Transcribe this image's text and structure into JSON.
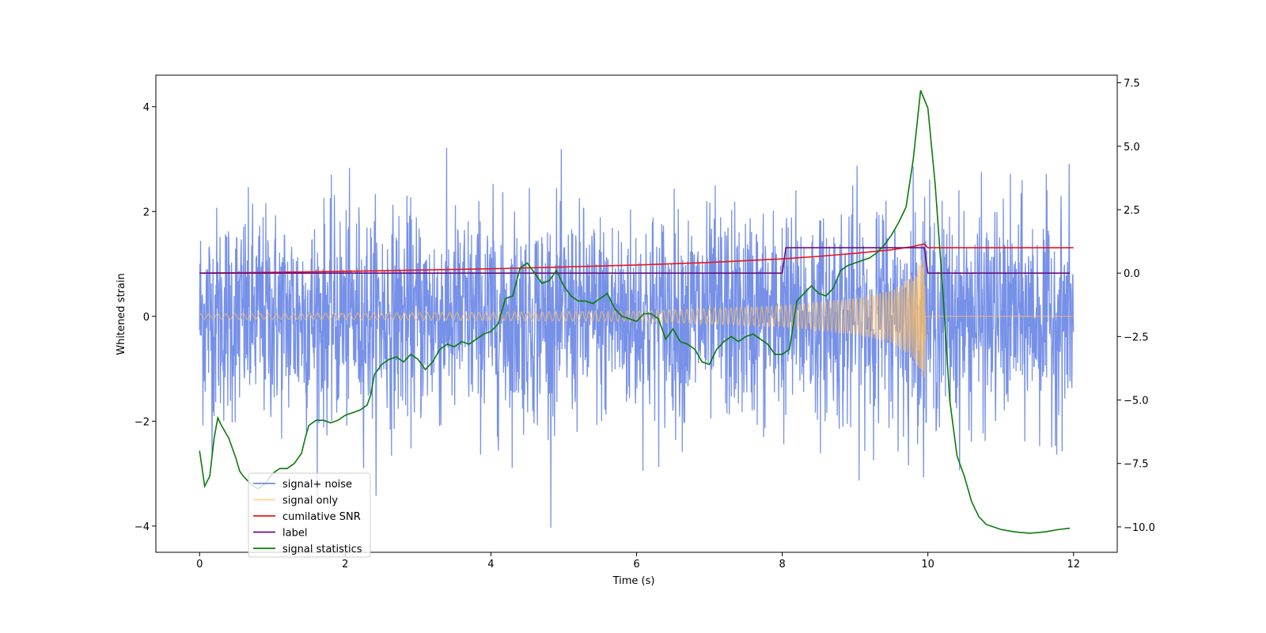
{
  "chart_data": {
    "type": "line",
    "xlabel": "Time (s)",
    "ylabel": "Whitened strain",
    "xlim": [
      -0.6,
      12.6
    ],
    "ylim_left": [
      -4.5,
      4.6
    ],
    "ylim_right": [
      -11.0,
      7.8
    ],
    "x_ticks": [
      0,
      2,
      4,
      6,
      8,
      10,
      12
    ],
    "y_ticks_left": [
      -4,
      -2,
      0,
      2,
      4
    ],
    "y_ticks_right": [
      -10.0,
      -7.5,
      -5.0,
      -2.5,
      0.0,
      2.5,
      5.0,
      7.5
    ],
    "legend_position": "lower-left",
    "grid": false,
    "series": [
      {
        "name": "signal+ noise",
        "axis": "left",
        "color": "#6b88e6",
        "style": "dense noise, about ±1 with peaks near ±4",
        "x_range": [
          0,
          12
        ],
        "typical_amplitude": 1.0,
        "peak_amplitude": 4.1
      },
      {
        "name": "signal only",
        "axis": "left",
        "color": "#ffc060",
        "style": "chirp",
        "x_range": [
          0,
          12
        ],
        "envelope": {
          "x": [
            0,
            2,
            4,
            6,
            8,
            9,
            9.5,
            9.8,
            9.97,
            10.0,
            12
          ],
          "y": [
            0.05,
            0.06,
            0.08,
            0.1,
            0.2,
            0.35,
            0.5,
            0.8,
            1.3,
            0,
            0
          ]
        }
      },
      {
        "name": "cumilative SNR",
        "axis": "right",
        "color": "#e8161c",
        "x": [
          0,
          1,
          2,
          3,
          4,
          5,
          6,
          7,
          8,
          8.5,
          9,
          9.5,
          9.8,
          9.95,
          10,
          12
        ],
        "y": [
          0.0,
          0.03,
          0.07,
          0.12,
          0.17,
          0.24,
          0.32,
          0.42,
          0.56,
          0.66,
          0.78,
          0.92,
          1.05,
          1.15,
          1.0,
          1.0
        ]
      },
      {
        "name": "label",
        "axis": "right",
        "color": "#6a0f80",
        "x": [
          0,
          8.0,
          8.05,
          9.95,
          10.0,
          11.95
        ],
        "y": [
          0.0,
          0.0,
          1.0,
          1.0,
          0.0,
          0.0
        ]
      },
      {
        "name": "signal statistics",
        "axis": "right",
        "color": "#0a7a0a",
        "x": [
          0.0,
          0.07,
          0.14,
          0.2,
          0.25,
          0.3,
          0.4,
          0.5,
          0.55,
          0.6,
          0.7,
          0.8,
          0.9,
          1.0,
          1.1,
          1.2,
          1.3,
          1.4,
          1.45,
          1.5,
          1.6,
          1.7,
          1.8,
          1.9,
          2.0,
          2.1,
          2.2,
          2.3,
          2.35,
          2.4,
          2.5,
          2.6,
          2.7,
          2.8,
          2.9,
          3.0,
          3.1,
          3.2,
          3.3,
          3.4,
          3.5,
          3.6,
          3.7,
          3.8,
          3.9,
          4.0,
          4.1,
          4.2,
          4.3,
          4.4,
          4.5,
          4.6,
          4.7,
          4.8,
          4.9,
          5.0,
          5.1,
          5.2,
          5.3,
          5.4,
          5.5,
          5.6,
          5.7,
          5.8,
          5.9,
          6.0,
          6.1,
          6.2,
          6.3,
          6.4,
          6.5,
          6.6,
          6.7,
          6.8,
          6.9,
          7.0,
          7.1,
          7.2,
          7.3,
          7.4,
          7.5,
          7.6,
          7.7,
          7.8,
          7.9,
          8.0,
          8.1,
          8.2,
          8.3,
          8.4,
          8.5,
          8.6,
          8.7,
          8.8,
          8.9,
          9.0,
          9.1,
          9.2,
          9.3,
          9.4,
          9.5,
          9.6,
          9.7,
          9.8,
          9.9,
          10.0,
          10.1,
          10.2,
          10.3,
          10.4,
          10.5,
          10.6,
          10.7,
          10.8,
          10.9,
          11.0,
          11.2,
          11.4,
          11.6,
          11.8,
          11.95
        ],
        "y": [
          -7.0,
          -8.4,
          -8.0,
          -6.5,
          -5.7,
          -6.0,
          -6.5,
          -7.3,
          -7.8,
          -8.0,
          -8.3,
          -8.5,
          -8.3,
          -7.9,
          -7.7,
          -7.7,
          -7.5,
          -7.1,
          -6.5,
          -6.0,
          -5.8,
          -5.8,
          -5.9,
          -5.8,
          -5.6,
          -5.5,
          -5.4,
          -5.2,
          -4.8,
          -4.0,
          -3.6,
          -3.4,
          -3.3,
          -3.5,
          -3.2,
          -3.4,
          -3.8,
          -3.5,
          -3.0,
          -2.8,
          -2.9,
          -2.7,
          -2.8,
          -2.6,
          -2.4,
          -2.3,
          -2.0,
          -1.0,
          -0.9,
          0.2,
          0.4,
          0.0,
          -0.4,
          -0.3,
          0.1,
          -0.5,
          -0.9,
          -1.1,
          -1.1,
          -1.2,
          -1.0,
          -0.8,
          -1.4,
          -1.7,
          -1.8,
          -1.9,
          -1.6,
          -1.6,
          -1.8,
          -2.6,
          -2.2,
          -2.7,
          -2.8,
          -3.0,
          -3.5,
          -3.6,
          -3.0,
          -2.7,
          -2.5,
          -2.7,
          -2.5,
          -2.4,
          -2.6,
          -2.8,
          -3.2,
          -3.2,
          -3.0,
          -1.1,
          -0.8,
          -0.5,
          -0.8,
          -0.9,
          -0.6,
          0.1,
          0.3,
          0.4,
          0.5,
          0.6,
          0.8,
          1.1,
          1.5,
          2.0,
          2.6,
          4.5,
          7.2,
          6.5,
          3.5,
          -0.5,
          -5.0,
          -7.2,
          -8.0,
          -9.0,
          -9.6,
          -9.9,
          -10.0,
          -10.1,
          -10.2,
          -10.25,
          -10.2,
          -10.1,
          -10.05
        ]
      }
    ]
  }
}
